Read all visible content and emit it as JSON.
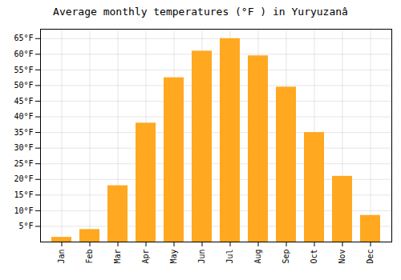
{
  "chart_data": {
    "type": "bar",
    "title": "Average monthly temperatures (°F ) in Yuryuzanâ",
    "categories": [
      "Jan",
      "Feb",
      "Mar",
      "Apr",
      "May",
      "Jun",
      "Jul",
      "Aug",
      "Sep",
      "Oct",
      "Nov",
      "Dec"
    ],
    "values": [
      1.5,
      4.0,
      18.0,
      38.0,
      52.5,
      61.0,
      65.0,
      59.5,
      49.5,
      35.0,
      21.0,
      8.5
    ],
    "color": "#FFA820",
    "ylim": [
      0,
      68
    ],
    "yticks": [
      {
        "value": 5,
        "label": "5°F"
      },
      {
        "value": 10,
        "label": "10°F"
      },
      {
        "value": 15,
        "label": "15°F"
      },
      {
        "value": 20,
        "label": "20°F"
      },
      {
        "value": 25,
        "label": "25°F"
      },
      {
        "value": 30,
        "label": "30°F"
      },
      {
        "value": 35,
        "label": "35°F"
      },
      {
        "value": 40,
        "label": "40°F"
      },
      {
        "value": 45,
        "label": "45°F"
      },
      {
        "value": 50,
        "label": "50°F"
      },
      {
        "value": 55,
        "label": "55°F"
      },
      {
        "value": 60,
        "label": "60°F"
      },
      {
        "value": 65,
        "label": "65°F"
      }
    ],
    "grid": true
  }
}
